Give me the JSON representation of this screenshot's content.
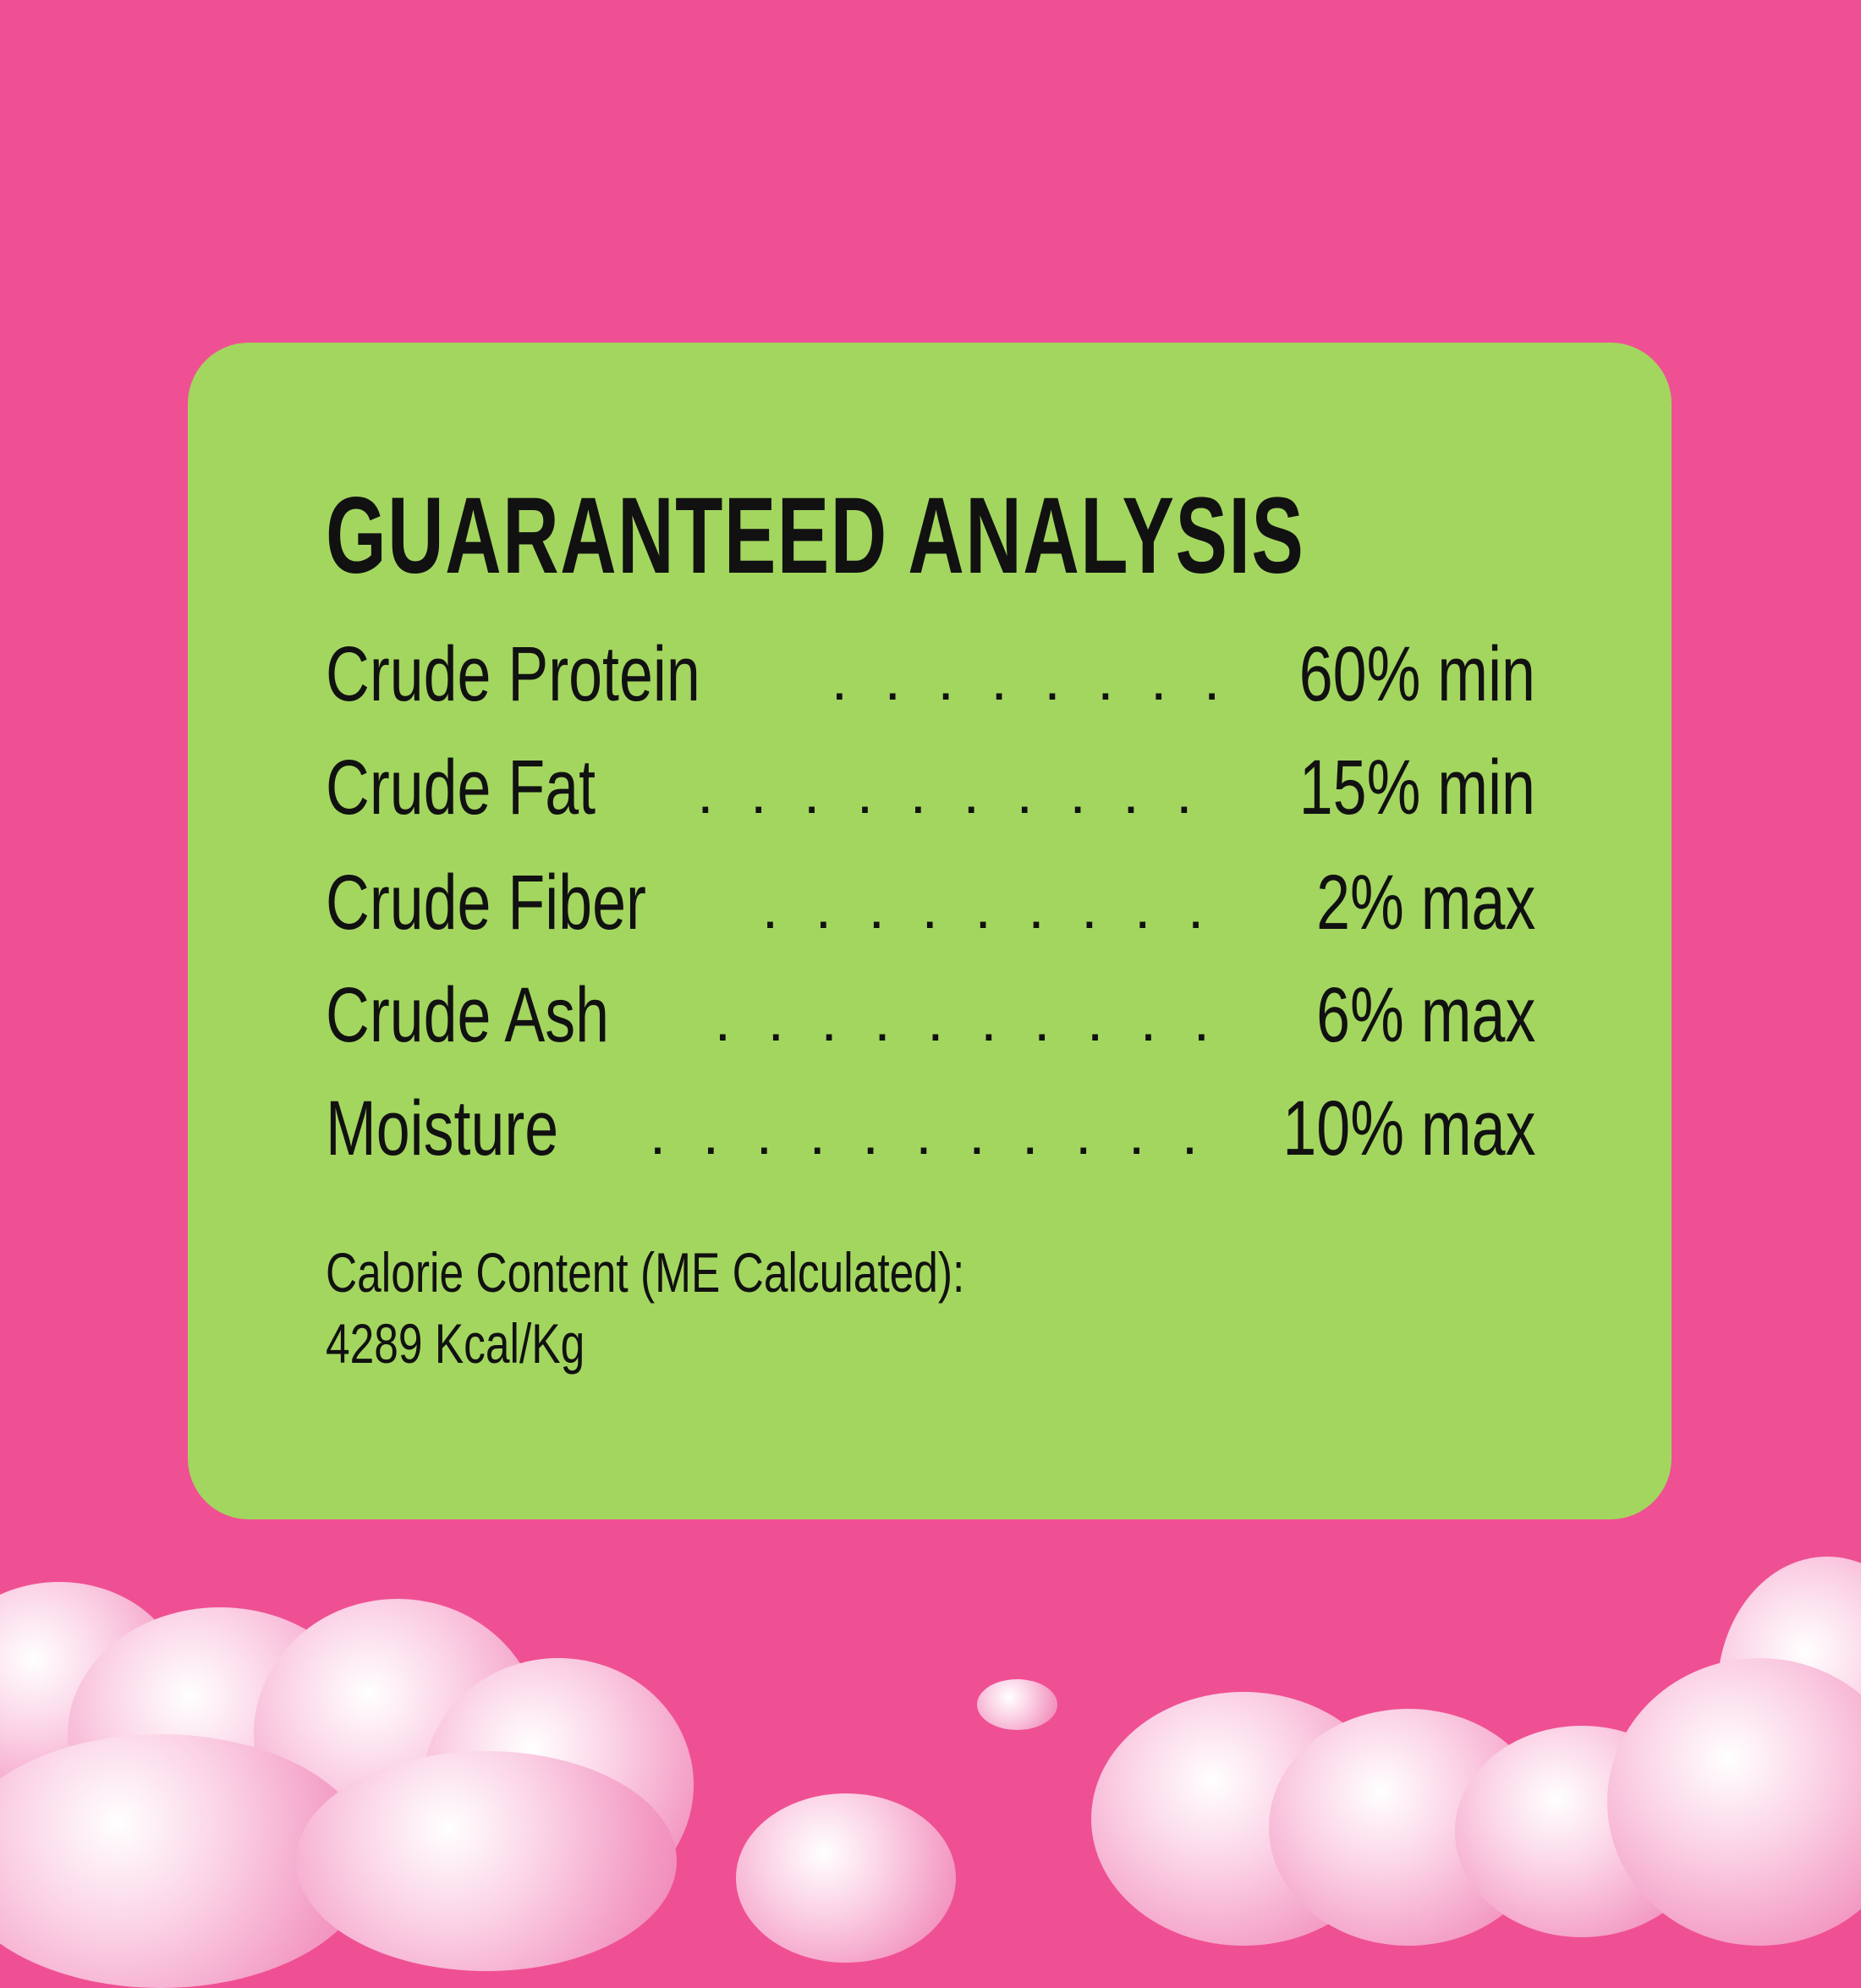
{
  "title": "GUARANTEED ANALYSIS",
  "rows": [
    {
      "label": "Crude Protein",
      "value": "60% min"
    },
    {
      "label": "Crude Fat",
      "value": "15% min"
    },
    {
      "label": "Crude Fiber",
      "value": "2% max"
    },
    {
      "label": "Crude Ash",
      "value": "6% max"
    },
    {
      "label": "Moisture",
      "value": "10% max"
    }
  ],
  "calorie": {
    "label": "Calorie Content (ME Calculated):",
    "value": "4289 Kcal/Kg"
  },
  "colors": {
    "background": "#ef5093",
    "card": "#a3d65f",
    "text": "#111111"
  }
}
